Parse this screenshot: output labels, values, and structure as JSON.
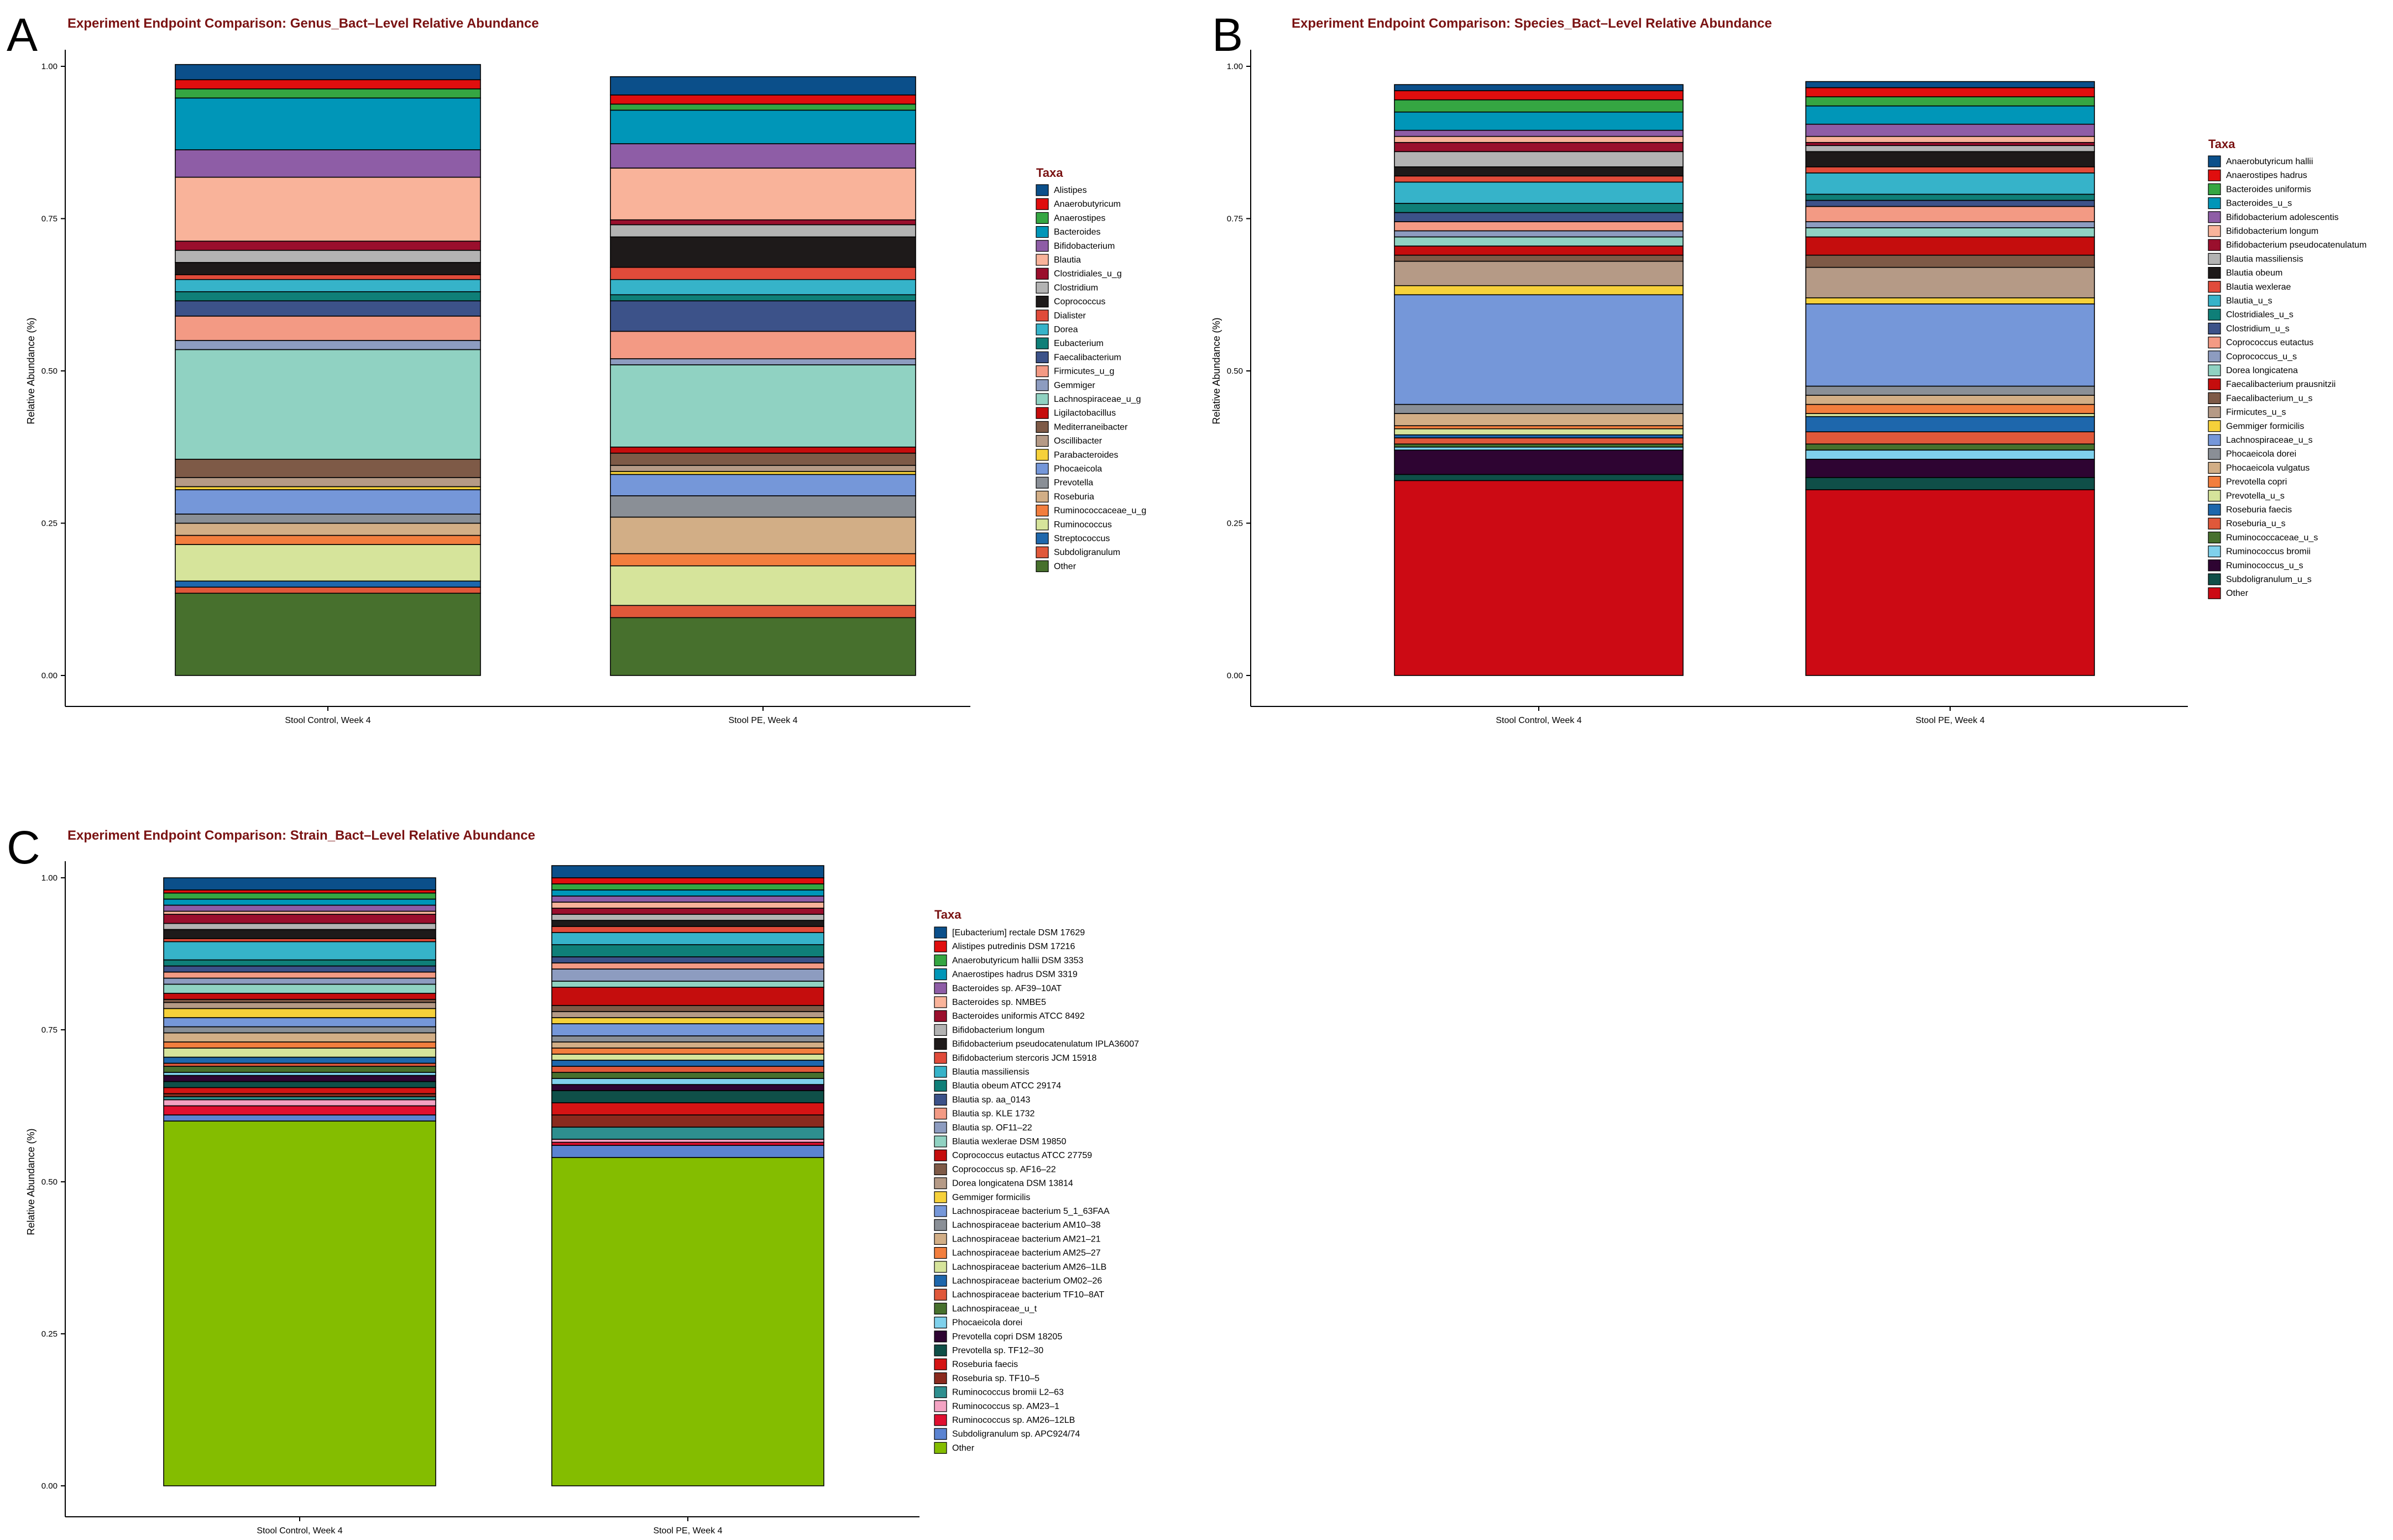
{
  "chart_data": [
    {
      "panel": "A",
      "type": "bar",
      "stacked": true,
      "title": "Experiment Endpoint Comparison: Genus_Bact–Level Relative Abundance",
      "xlabel": "",
      "ylabel": "Relative Abundance (%)",
      "ylim": [
        0,
        1
      ],
      "yticks": [
        "0.00",
        "0.25",
        "0.50",
        "0.75",
        "1.00"
      ],
      "categories": [
        "Stool Control, Week 4",
        "Stool PE, Week 4"
      ],
      "legend_title": "Taxa",
      "series": [
        {
          "name": "Alistipes",
          "color": "#0b4f8a",
          "values": [
            0.025,
            0.03
          ]
        },
        {
          "name": "Anaerobutyricum",
          "color": "#e00e0e",
          "values": [
            0.015,
            0.015
          ]
        },
        {
          "name": "Anaerostipes",
          "color": "#35a642",
          "values": [
            0.015,
            0.01
          ]
        },
        {
          "name": "Bacteroides",
          "color": "#0096b8",
          "values": [
            0.085,
            0.055
          ]
        },
        {
          "name": "Bifidobacterium",
          "color": "#8e5da6",
          "values": [
            0.045,
            0.04
          ]
        },
        {
          "name": "Blautia",
          "color": "#f9b39a",
          "values": [
            0.105,
            0.085
          ]
        },
        {
          "name": "Clostridiales_u_g",
          "color": "#9a0f2d",
          "values": [
            0.015,
            0.008
          ]
        },
        {
          "name": "Clostridium",
          "color": "#b3b3b3",
          "values": [
            0.02,
            0.02
          ]
        },
        {
          "name": "Coprococcus",
          "color": "#1e1a1a",
          "values": [
            0.02,
            0.05
          ]
        },
        {
          "name": "Dialister",
          "color": "#e04b3a",
          "values": [
            0.008,
            0.02
          ]
        },
        {
          "name": "Dorea",
          "color": "#36b3c9",
          "values": [
            0.02,
            0.025
          ]
        },
        {
          "name": "Eubacterium",
          "color": "#0f7f78",
          "values": [
            0.015,
            0.01
          ]
        },
        {
          "name": "Faecalibacterium",
          "color": "#3c5289",
          "values": [
            0.025,
            0.05
          ]
        },
        {
          "name": "Firmicutes_u_g",
          "color": "#f39a84",
          "values": [
            0.04,
            0.045
          ]
        },
        {
          "name": "Gemmiger",
          "color": "#8d9cc0",
          "values": [
            0.015,
            0.01
          ]
        },
        {
          "name": "Lachnospiraceae_u_g",
          "color": "#90d2c2",
          "values": [
            0.18,
            0.135
          ]
        },
        {
          "name": "Ligilactobacillus",
          "color": "#c50d0d",
          "values": [
            0.0,
            0.01
          ]
        },
        {
          "name": "Mediterraneibacter",
          "color": "#7e5a47",
          "values": [
            0.03,
            0.02
          ]
        },
        {
          "name": "Oscillibacter",
          "color": "#b59a86",
          "values": [
            0.015,
            0.01
          ]
        },
        {
          "name": "Parabacteroides",
          "color": "#f6d13a",
          "values": [
            0.005,
            0.005
          ]
        },
        {
          "name": "Phocaeicola",
          "color": "#7597d9",
          "values": [
            0.04,
            0.035
          ]
        },
        {
          "name": "Prevotella",
          "color": "#8a8f96",
          "values": [
            0.015,
            0.035
          ]
        },
        {
          "name": "Roseburia",
          "color": "#d2ae86",
          "values": [
            0.02,
            0.06
          ]
        },
        {
          "name": "Ruminococcaceae_u_g",
          "color": "#f27e3e",
          "values": [
            0.015,
            0.02
          ]
        },
        {
          "name": "Ruminococcus",
          "color": "#d6e49b",
          "values": [
            0.06,
            0.065
          ]
        },
        {
          "name": "Streptococcus",
          "color": "#1e67ac",
          "values": [
            0.01,
            0.0
          ]
        },
        {
          "name": "Subdoligranulum",
          "color": "#e0583a",
          "values": [
            0.01,
            0.02
          ]
        },
        {
          "name": "Other",
          "color": "#47702d",
          "values": [
            0.135,
            0.095
          ]
        }
      ]
    },
    {
      "panel": "B",
      "type": "bar",
      "stacked": true,
      "title": "Experiment Endpoint Comparison: Species_Bact–Level Relative Abundance",
      "xlabel": "",
      "ylabel": "Relative Abundance (%)",
      "ylim": [
        0,
        1
      ],
      "yticks": [
        "0.00",
        "0.25",
        "0.50",
        "0.75",
        "1.00"
      ],
      "categories": [
        "Stool Control, Week 4",
        "Stool PE,  Week 4"
      ],
      "legend_title": "Taxa",
      "series": [
        {
          "name": "Anaerobutyricum hallii",
          "color": "#0b4f8a",
          "values": [
            0.01,
            0.01
          ]
        },
        {
          "name": "Anaerostipes hadrus",
          "color": "#e00e0e",
          "values": [
            0.015,
            0.015
          ]
        },
        {
          "name": "Bacteroides uniformis",
          "color": "#35a642",
          "values": [
            0.02,
            0.015
          ]
        },
        {
          "name": "Bacteroides_u_s",
          "color": "#0096b8",
          "values": [
            0.03,
            0.03
          ]
        },
        {
          "name": "Bifidobacterium adolescentis",
          "color": "#8e5da6",
          "values": [
            0.01,
            0.02
          ]
        },
        {
          "name": "Bifidobacterium longum",
          "color": "#f9b39a",
          "values": [
            0.01,
            0.01
          ]
        },
        {
          "name": "Bifidobacterium pseudocatenulatum",
          "color": "#9a0f2d",
          "values": [
            0.015,
            0.005
          ]
        },
        {
          "name": "Blautia massiliensis",
          "color": "#b3b3b3",
          "values": [
            0.025,
            0.01
          ]
        },
        {
          "name": "Blautia obeum",
          "color": "#1e1a1a",
          "values": [
            0.015,
            0.025
          ]
        },
        {
          "name": "Blautia wexlerae",
          "color": "#e04b3a",
          "values": [
            0.01,
            0.01
          ]
        },
        {
          "name": "Blautia_u_s",
          "color": "#36b3c9",
          "values": [
            0.035,
            0.035
          ]
        },
        {
          "name": "Clostridiales_u_s",
          "color": "#0f7f78",
          "values": [
            0.015,
            0.01
          ]
        },
        {
          "name": "Clostridium_u_s",
          "color": "#3c5289",
          "values": [
            0.015,
            0.01
          ]
        },
        {
          "name": "Coprococcus eutactus",
          "color": "#f39a84",
          "values": [
            0.015,
            0.025
          ]
        },
        {
          "name": "Coprococcus_u_s",
          "color": "#8d9cc0",
          "values": [
            0.01,
            0.01
          ]
        },
        {
          "name": "Dorea longicatena",
          "color": "#90d2c2",
          "values": [
            0.015,
            0.015
          ]
        },
        {
          "name": "Faecalibacterium prausnitzii",
          "color": "#c50d0d",
          "values": [
            0.015,
            0.03
          ]
        },
        {
          "name": "Faecalibacterium_u_s",
          "color": "#7e5a47",
          "values": [
            0.01,
            0.02
          ]
        },
        {
          "name": "Firmicutes_u_s",
          "color": "#b59a86",
          "values": [
            0.04,
            0.05
          ]
        },
        {
          "name": "Gemmiger formicilis",
          "color": "#f6d13a",
          "values": [
            0.015,
            0.01
          ]
        },
        {
          "name": "Lachnospiraceae_u_s",
          "color": "#7597d9",
          "values": [
            0.18,
            0.135
          ]
        },
        {
          "name": "Phocaeicola dorei",
          "color": "#8a8f96",
          "values": [
            0.015,
            0.015
          ]
        },
        {
          "name": "Phocaeicola vulgatus",
          "color": "#d2ae86",
          "values": [
            0.02,
            0.015
          ]
        },
        {
          "name": "Prevotella copri",
          "color": "#f27e3e",
          "values": [
            0.005,
            0.015
          ]
        },
        {
          "name": "Prevotella_u_s",
          "color": "#d6e49b",
          "values": [
            0.01,
            0.005
          ]
        },
        {
          "name": "Roseburia faecis",
          "color": "#1e67ac",
          "values": [
            0.005,
            0.025
          ]
        },
        {
          "name": "Roseburia_u_s",
          "color": "#e0583a",
          "values": [
            0.01,
            0.02
          ]
        },
        {
          "name": "Ruminococcaceae_u_s",
          "color": "#47702d",
          "values": [
            0.005,
            0.01
          ]
        },
        {
          "name": "Ruminococcus bromii",
          "color": "#7fd1ec",
          "values": [
            0.005,
            0.015
          ]
        },
        {
          "name": "Ruminococcus_u_s",
          "color": "#2e0432",
          "values": [
            0.04,
            0.03
          ]
        },
        {
          "name": "Subdoligranulum_u_s",
          "color": "#0f4f48",
          "values": [
            0.01,
            0.02
          ]
        },
        {
          "name": "Other",
          "color": "#cc0a14",
          "values": [
            0.32,
            0.305
          ]
        }
      ]
    },
    {
      "panel": "C",
      "type": "bar",
      "stacked": true,
      "title": "Experiment Endpoint Comparison: Strain_Bact–Level Relative Abundance",
      "xlabel": "",
      "ylabel": "Relative Abundance (%)",
      "ylim": [
        0,
        1
      ],
      "yticks": [
        "0.00",
        "0.25",
        "0.50",
        "0.75",
        "1.00"
      ],
      "categories": [
        "Stool Control, Week 4",
        "Stool PE,  Week 4"
      ],
      "legend_title": "Taxa",
      "series": [
        {
          "name": "[Eubacterium] rectale DSM 17629",
          "color": "#0b4f8a",
          "values": [
            0.02,
            0.02
          ]
        },
        {
          "name": "Alistipes putredinis DSM 17216",
          "color": "#e00e0e",
          "values": [
            0.005,
            0.01
          ]
        },
        {
          "name": "Anaerobutyricum hallii DSM 3353",
          "color": "#35a642",
          "values": [
            0.01,
            0.01
          ]
        },
        {
          "name": "Anaerostipes hadrus DSM 3319",
          "color": "#0096b8",
          "values": [
            0.01,
            0.01
          ]
        },
        {
          "name": "Bacteroides sp. AF39–10AT",
          "color": "#8e5da6",
          "values": [
            0.01,
            0.01
          ]
        },
        {
          "name": "Bacteroides sp. NMBE5",
          "color": "#f9b39a",
          "values": [
            0.005,
            0.01
          ]
        },
        {
          "name": "Bacteroides uniformis ATCC 8492",
          "color": "#9a0f2d",
          "values": [
            0.015,
            0.01
          ]
        },
        {
          "name": "Bifidobacterium longum",
          "color": "#b3b3b3",
          "values": [
            0.01,
            0.01
          ]
        },
        {
          "name": "Bifidobacterium pseudocatenulatum IPLA36007",
          "color": "#1e1a1a",
          "values": [
            0.015,
            0.01
          ]
        },
        {
          "name": "Bifidobacterium stercoris JCM 15918",
          "color": "#e04b3a",
          "values": [
            0.005,
            0.01
          ]
        },
        {
          "name": "Blautia massiliensis",
          "color": "#36b3c9",
          "values": [
            0.03,
            0.02
          ]
        },
        {
          "name": "Blautia obeum ATCC 29174",
          "color": "#0f7f78",
          "values": [
            0.01,
            0.02
          ]
        },
        {
          "name": "Blautia sp. aa_0143",
          "color": "#3c5289",
          "values": [
            0.01,
            0.01
          ]
        },
        {
          "name": "Blautia sp. KLE 1732",
          "color": "#f39a84",
          "values": [
            0.01,
            0.01
          ]
        },
        {
          "name": "Blautia sp. OF11–22",
          "color": "#8d9cc0",
          "values": [
            0.01,
            0.02
          ]
        },
        {
          "name": "Blautia wexlerae DSM 19850",
          "color": "#90d2c2",
          "values": [
            0.015,
            0.01
          ]
        },
        {
          "name": "Coprococcus eutactus ATCC 27759",
          "color": "#c50d0d",
          "values": [
            0.01,
            0.03
          ]
        },
        {
          "name": "Coprococcus sp. AF16–22",
          "color": "#7e5a47",
          "values": [
            0.005,
            0.01
          ]
        },
        {
          "name": "Dorea longicatena DSM 13814",
          "color": "#b59a86",
          "values": [
            0.01,
            0.01
          ]
        },
        {
          "name": "Gemmiger formicilis",
          "color": "#f6d13a",
          "values": [
            0.015,
            0.01
          ]
        },
        {
          "name": "Lachnospiraceae bacterium 5_1_63FAA",
          "color": "#7597d9",
          "values": [
            0.015,
            0.02
          ]
        },
        {
          "name": "Lachnospiraceae bacterium AM10–38",
          "color": "#8a8f96",
          "values": [
            0.01,
            0.01
          ]
        },
        {
          "name": "Lachnospiraceae bacterium AM21–21",
          "color": "#d2ae86",
          "values": [
            0.015,
            0.01
          ]
        },
        {
          "name": "Lachnospiraceae bacterium AM25–27",
          "color": "#f27e3e",
          "values": [
            0.01,
            0.01
          ]
        },
        {
          "name": "Lachnospiraceae bacterium AM26–1LB",
          "color": "#d6e49b",
          "values": [
            0.015,
            0.01
          ]
        },
        {
          "name": "Lachnospiraceae bacterium OM02–26",
          "color": "#1e67ac",
          "values": [
            0.01,
            0.01
          ]
        },
        {
          "name": "Lachnospiraceae bacterium TF10–8AT",
          "color": "#e0583a",
          "values": [
            0.005,
            0.01
          ]
        },
        {
          "name": "Lachnospiraceae_u_t",
          "color": "#47702d",
          "values": [
            0.01,
            0.01
          ]
        },
        {
          "name": "Phocaeicola dorei",
          "color": "#7fd1ec",
          "values": [
            0.005,
            0.01
          ]
        },
        {
          "name": "Prevotella copri DSM 18205",
          "color": "#2e0432",
          "values": [
            0.01,
            0.01
          ]
        },
        {
          "name": "Prevotella sp. TF12–30",
          "color": "#0f4f48",
          "values": [
            0.01,
            0.02
          ]
        },
        {
          "name": "Roseburia faecis",
          "color": "#d41414",
          "values": [
            0.01,
            0.02
          ]
        },
        {
          "name": "Roseburia sp. TF10–5",
          "color": "#8a2a1e",
          "values": [
            0.005,
            0.02
          ]
        },
        {
          "name": "Ruminococcus bromii L2–63",
          "color": "#2e8f8f",
          "values": [
            0.005,
            0.02
          ]
        },
        {
          "name": "Ruminococcus sp. AM23–1",
          "color": "#f4a3c3",
          "values": [
            0.01,
            0.005
          ]
        },
        {
          "name": "Ruminococcus sp. AM26–12LB",
          "color": "#e01030",
          "values": [
            0.015,
            0.005
          ]
        },
        {
          "name": "Subdoligranulum sp. APC924/74",
          "color": "#5b83d1",
          "values": [
            0.01,
            0.02
          ]
        },
        {
          "name": "Other",
          "color": "#84bd00",
          "values": [
            0.6,
            0.54
          ]
        }
      ]
    }
  ]
}
